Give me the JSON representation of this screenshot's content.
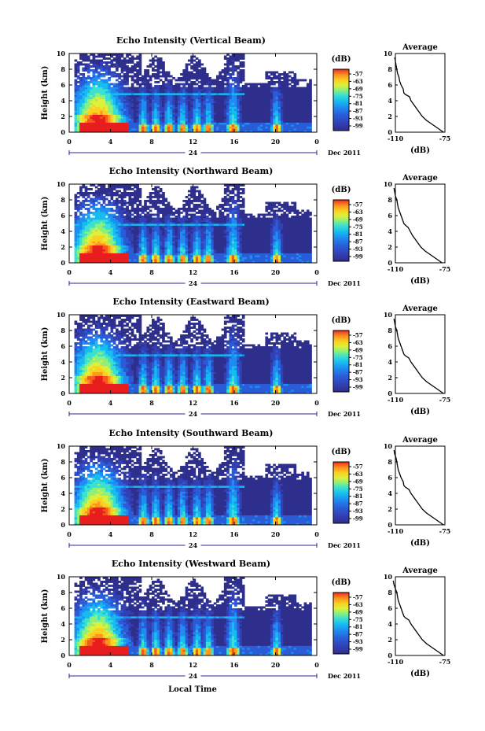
{
  "figure": {
    "x_axis_title": "Local Time",
    "date_label": "Dec 2011",
    "day_marker": "24"
  },
  "chart_data": [
    {
      "type": "heatmap",
      "title": "Echo Intensity (Vertical Beam)",
      "ylabel": "Height (km)",
      "xlabel": "Local Time",
      "xlim": [
        0,
        24
      ],
      "ylim": [
        0,
        10
      ],
      "x_ticks": [
        "0",
        "4",
        "8",
        "12",
        "16",
        "20",
        "0"
      ],
      "y_ticks": [
        "0",
        "2",
        "4",
        "6",
        "8",
        "10"
      ],
      "colorbar": {
        "label": "(dB)",
        "ticks": [
          "-57",
          "-63",
          "-69",
          "-75",
          "-81",
          "-87",
          "-93",
          "-99"
        ]
      },
      "average_profile": {
        "title": "Average",
        "xlabel": "(dB)",
        "xlim": [
          -110,
          -75
        ],
        "x_ticks": [
          "-110",
          "-75"
        ],
        "y_ticks": [
          "0",
          "2",
          "4",
          "6",
          "8",
          "10"
        ],
        "height_km": [
          0,
          0.5,
          1,
          1.5,
          2,
          2.5,
          3,
          3.5,
          4,
          4.5,
          4.8,
          5,
          5.5,
          6,
          6.5,
          7,
          7.5,
          8,
          8.5,
          9,
          9.5
        ],
        "db": [
          -76,
          -80,
          -84,
          -88,
          -91,
          -93,
          -95,
          -97,
          -99,
          -100,
          -103,
          -104,
          -104.5,
          -106,
          -107,
          -107.5,
          -108.5,
          -109,
          -109.5,
          -110,
          -110.5
        ]
      }
    },
    {
      "type": "heatmap",
      "title": "Echo Intensity (Northward Beam)",
      "ylabel": "Height (km)",
      "xlabel": "Local Time",
      "xlim": [
        0,
        24
      ],
      "ylim": [
        0,
        10
      ],
      "x_ticks": [
        "0",
        "4",
        "8",
        "12",
        "16",
        "20",
        "0"
      ],
      "y_ticks": [
        "0",
        "2",
        "4",
        "6",
        "8",
        "10"
      ],
      "colorbar": {
        "label": "(dB)",
        "ticks": [
          "-57",
          "-63",
          "-69",
          "-75",
          "-81",
          "-87",
          "-93",
          "-99"
        ]
      },
      "average_profile": {
        "title": "Average",
        "xlabel": "(dB)",
        "xlim": [
          -110,
          -75
        ],
        "x_ticks": [
          "-110",
          "-75"
        ],
        "y_ticks": [
          "0",
          "2",
          "4",
          "6",
          "8",
          "10"
        ],
        "height_km": [
          0,
          0.5,
          1,
          1.5,
          2,
          2.5,
          3,
          3.5,
          4,
          4.5,
          4.8,
          5,
          5.5,
          6,
          6.5,
          7,
          7.5,
          8,
          8.5,
          9,
          9.5
        ],
        "db": [
          -77,
          -81,
          -85,
          -89,
          -92,
          -94,
          -96,
          -98,
          -99.5,
          -101,
          -103,
          -104,
          -105,
          -106,
          -107,
          -108,
          -108.5,
          -109,
          -110,
          -110.5,
          -111
        ]
      }
    },
    {
      "type": "heatmap",
      "title": "Echo Intensity (Eastward Beam)",
      "ylabel": "Height (km)",
      "xlabel": "Local Time",
      "xlim": [
        0,
        24
      ],
      "ylim": [
        0,
        10
      ],
      "x_ticks": [
        "0",
        "4",
        "8",
        "12",
        "16",
        "20",
        "0"
      ],
      "y_ticks": [
        "0",
        "2",
        "4",
        "6",
        "8",
        "10"
      ],
      "colorbar": {
        "label": "(dB)",
        "ticks": [
          "-57",
          "-63",
          "-69",
          "-75",
          "-81",
          "-87",
          "-93",
          "-99"
        ]
      },
      "average_profile": {
        "title": "Average",
        "xlabel": "(dB)",
        "xlim": [
          -110,
          -75
        ],
        "x_ticks": [
          "-110",
          "-75"
        ],
        "y_ticks": [
          "0",
          "2",
          "4",
          "6",
          "8",
          "10"
        ],
        "height_km": [
          0,
          0.5,
          1,
          1.5,
          2,
          2.5,
          3,
          3.5,
          4,
          4.5,
          4.8,
          5,
          5.5,
          6,
          6.5,
          7,
          7.5,
          8,
          8.5,
          9,
          9.5
        ],
        "db": [
          -76,
          -80,
          -84,
          -88,
          -91,
          -93,
          -95,
          -97,
          -99,
          -100.5,
          -103,
          -104,
          -105,
          -106,
          -107,
          -108,
          -108.5,
          -109,
          -110,
          -110.5,
          -111
        ]
      }
    },
    {
      "type": "heatmap",
      "title": "Echo Intensity (Southward Beam)",
      "ylabel": "Height (km)",
      "xlabel": "Local Time",
      "xlim": [
        0,
        24
      ],
      "ylim": [
        0,
        10
      ],
      "x_ticks": [
        "0",
        "4",
        "8",
        "12",
        "16",
        "20",
        "0"
      ],
      "y_ticks": [
        "0",
        "2",
        "4",
        "6",
        "8",
        "10"
      ],
      "colorbar": {
        "label": "(dB)",
        "ticks": [
          "-57",
          "-63",
          "-69",
          "-75",
          "-81",
          "-87",
          "-93",
          "-99"
        ]
      },
      "average_profile": {
        "title": "Average",
        "xlabel": "(dB)",
        "xlim": [
          -110,
          -75
        ],
        "x_ticks": [
          "-110",
          "-75"
        ],
        "y_ticks": [
          "0",
          "2",
          "4",
          "6",
          "8",
          "10"
        ],
        "height_km": [
          0,
          0.5,
          1,
          1.5,
          2,
          2.5,
          3,
          3.5,
          4,
          4.5,
          4.8,
          5,
          5.5,
          6,
          6.5,
          7,
          7.5,
          8,
          8.5,
          9,
          9.5
        ],
        "db": [
          -76,
          -80,
          -84,
          -88,
          -91,
          -93,
          -95,
          -97,
          -99,
          -100.5,
          -103,
          -104,
          -104.5,
          -106,
          -107,
          -108,
          -108.5,
          -109,
          -109.5,
          -110.5,
          -111
        ]
      }
    },
    {
      "type": "heatmap",
      "title": "Echo Intensity (Westward Beam)",
      "ylabel": "Height (km)",
      "xlabel": "Local Time",
      "xlim": [
        0,
        24
      ],
      "ylim": [
        0,
        10
      ],
      "x_ticks": [
        "0",
        "4",
        "8",
        "12",
        "16",
        "20",
        "0"
      ],
      "y_ticks": [
        "0",
        "2",
        "4",
        "6",
        "8",
        "10"
      ],
      "colorbar": {
        "label": "(dB)",
        "ticks": [
          "-57",
          "-63",
          "-69",
          "-75",
          "-81",
          "-87",
          "-93",
          "-99"
        ]
      },
      "average_profile": {
        "title": "Average",
        "xlabel": "(dB)",
        "xlim": [
          -110,
          -75
        ],
        "x_ticks": [
          "-110",
          "-75"
        ],
        "y_ticks": [
          "0",
          "2",
          "4",
          "6",
          "8",
          "10"
        ],
        "height_km": [
          0,
          0.5,
          1,
          1.5,
          2,
          2.5,
          3,
          3.5,
          4,
          4.5,
          4.8,
          5,
          5.5,
          6,
          6.5,
          7,
          7.5,
          8,
          8.5,
          9,
          9.5
        ],
        "db": [
          -76,
          -80,
          -84,
          -88,
          -91,
          -93,
          -95,
          -97,
          -99,
          -100.5,
          -103,
          -104,
          -105,
          -106,
          -107,
          -108,
          -108.5,
          -109,
          -110,
          -111,
          -111.5
        ]
      }
    }
  ],
  "colormap": [
    "#2e2e8c",
    "#3240b4",
    "#2a5cd8",
    "#1e8cf0",
    "#16bcf0",
    "#3ce0d0",
    "#8cf07a",
    "#dcf03c",
    "#fcd020",
    "#fc9820",
    "#f85a1e",
    "#e81e1e"
  ]
}
